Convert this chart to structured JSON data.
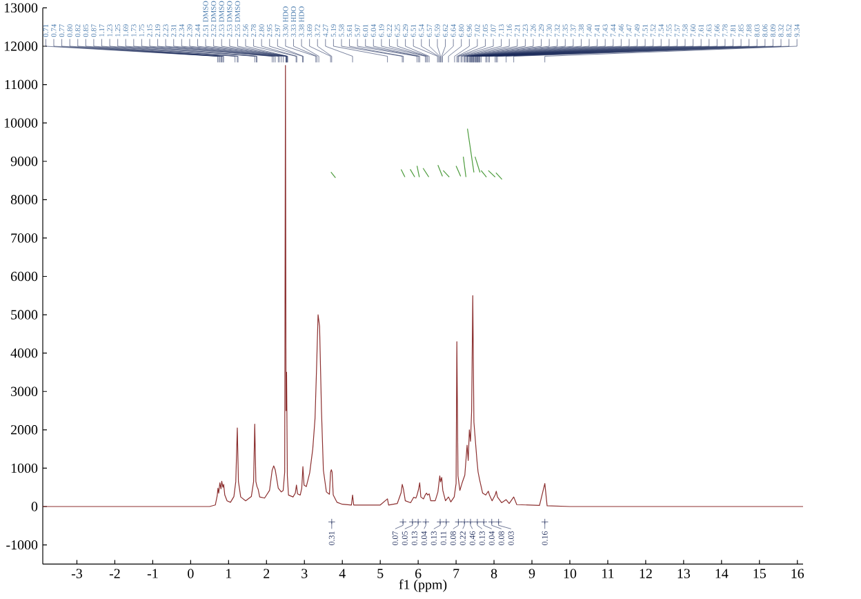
{
  "chart_data": {
    "type": "line",
    "xlabel": "f1 (ppm)",
    "xlim": [
      -3.9,
      16.15
    ],
    "ylim": [
      -1500,
      13000
    ],
    "xticks": [
      -3,
      -2,
      -1,
      0,
      1,
      2,
      3,
      4,
      5,
      6,
      7,
      8,
      9,
      10,
      11,
      12,
      13,
      14,
      15,
      16
    ],
    "yticks": [
      -1000,
      0,
      1000,
      2000,
      3000,
      4000,
      5000,
      6000,
      7000,
      8000,
      9000,
      10000,
      11000,
      12000,
      13000
    ],
    "series": [
      {
        "color": "#8b2e2e",
        "x": [
          -3.9,
          0.5,
          0.65,
          0.7,
          0.72,
          0.74,
          0.77,
          0.8,
          0.82,
          0.85,
          0.87,
          0.9,
          0.96,
          1.05,
          1.14,
          1.19,
          1.23,
          1.26,
          1.32,
          1.45,
          1.6,
          1.66,
          1.69,
          1.72,
          1.75,
          1.78,
          1.82,
          1.95,
          2.08,
          2.15,
          2.19,
          2.23,
          2.31,
          2.39,
          2.44,
          2.48,
          2.5,
          2.515,
          2.53,
          2.55,
          2.58,
          2.7,
          2.76,
          2.79,
          2.82,
          2.89,
          2.93,
          2.96,
          2.99,
          3.05,
          3.14,
          3.22,
          3.28,
          3.32,
          3.36,
          3.4,
          3.45,
          3.5,
          3.58,
          3.66,
          3.69,
          3.71,
          3.73,
          3.76,
          3.86,
          4.0,
          4.24,
          4.27,
          4.3,
          5.0,
          5.19,
          5.22,
          5.45,
          5.55,
          5.58,
          5.61,
          5.66,
          5.8,
          5.88,
          5.94,
          5.97,
          6.01,
          6.04,
          6.07,
          6.14,
          6.19,
          6.22,
          6.25,
          6.29,
          6.33,
          6.45,
          6.52,
          6.57,
          6.59,
          6.62,
          6.65,
          6.72,
          6.8,
          6.86,
          6.95,
          7.0,
          7.02,
          7.05,
          7.1,
          7.16,
          7.23,
          7.29,
          7.32,
          7.35,
          7.38,
          7.41,
          7.44,
          7.47,
          7.51,
          7.55,
          7.58,
          7.62,
          7.7,
          7.78,
          7.85,
          7.88,
          7.95,
          8.03,
          8.06,
          8.09,
          8.2,
          8.32,
          8.4,
          8.52,
          8.6,
          9.2,
          9.34,
          9.4,
          10.0,
          16.15
        ],
        "values": [
          0,
          0,
          40,
          280,
          480,
          350,
          620,
          460,
          660,
          500,
          580,
          300,
          150,
          110,
          260,
          650,
          2050,
          650,
          250,
          150,
          260,
          650,
          2150,
          650,
          520,
          450,
          250,
          220,
          420,
          950,
          1060,
          960,
          480,
          380,
          420,
          900,
          11500,
          2500,
          3500,
          800,
          300,
          250,
          350,
          560,
          330,
          300,
          480,
          1040,
          560,
          520,
          880,
          1500,
          2300,
          3600,
          5000,
          4700,
          2500,
          950,
          380,
          320,
          900,
          960,
          900,
          300,
          110,
          60,
          40,
          300,
          40,
          40,
          200,
          40,
          80,
          360,
          580,
          460,
          150,
          100,
          240,
          220,
          300,
          450,
          620,
          250,
          200,
          310,
          350,
          300,
          330,
          150,
          150,
          380,
          800,
          640,
          760,
          420,
          150,
          250,
          120,
          250,
          600,
          4300,
          800,
          420,
          620,
          820,
          1600,
          1200,
          2000,
          1700,
          2500,
          5500,
          2200,
          1700,
          1200,
          900,
          700,
          350,
          300,
          400,
          300,
          150,
          300,
          400,
          250,
          100,
          180,
          80,
          250,
          50,
          30,
          600,
          20,
          0,
          0
        ]
      },
      {
        "color": "#4a9a3a",
        "x": [
          3.7,
          3.82
        ],
        "values": [
          8720,
          8570
        ]
      },
      {
        "color": "#4a9a3a",
        "x": [
          5.55,
          5.65
        ],
        "values": [
          8790,
          8590
        ]
      },
      {
        "color": "#4a9a3a",
        "x": [
          5.79,
          5.91
        ],
        "values": [
          8790,
          8590
        ]
      },
      {
        "color": "#4a9a3a",
        "x": [
          5.97,
          6.03
        ],
        "values": [
          8880,
          8590
        ]
      },
      {
        "color": "#4a9a3a",
        "x": [
          6.13,
          6.28
        ],
        "values": [
          8820,
          8590
        ]
      },
      {
        "color": "#4a9a3a",
        "x": [
          6.52,
          6.64
        ],
        "values": [
          8900,
          8610
        ]
      },
      {
        "color": "#4a9a3a",
        "x": [
          6.66,
          6.82
        ],
        "values": [
          8760,
          8590
        ]
      },
      {
        "color": "#4a9a3a",
        "x": [
          7.0,
          7.12
        ],
        "values": [
          8880,
          8610
        ]
      },
      {
        "color": "#4a9a3a",
        "x": [
          7.19,
          7.26
        ],
        "values": [
          9120,
          8590
        ]
      },
      {
        "color": "#4a9a3a",
        "x": [
          7.3,
          7.47
        ],
        "values": [
          9850,
          8710
        ]
      },
      {
        "color": "#4a9a3a",
        "x": [
          7.5,
          7.63
        ],
        "values": [
          9120,
          8710
        ]
      },
      {
        "color": "#4a9a3a",
        "x": [
          7.66,
          7.8
        ],
        "values": [
          8760,
          8590
        ]
      },
      {
        "color": "#4a9a3a",
        "x": [
          7.85,
          8.03
        ],
        "values": [
          8760,
          8590
        ]
      },
      {
        "color": "#4a9a3a",
        "x": [
          8.05,
          8.21
        ],
        "values": [
          8700,
          8530
        ]
      },
      {
        "type": "scatter",
        "color": "#2d3a66",
        "x": [
          3.72,
          5.6,
          5.85,
          6.0,
          6.2,
          6.58,
          6.74,
          7.06,
          7.22,
          7.38,
          7.56,
          7.73,
          7.94,
          8.12,
          9.34
        ],
        "values": [
          -400,
          -400,
          -400,
          -400,
          -400,
          -400,
          -400,
          -400,
          -400,
          -400,
          -400,
          -400,
          -400,
          -400,
          -400
        ]
      }
    ],
    "annotations": [
      {
        "text": "0.71",
        "x": 0.71
      },
      {
        "text": "0.74",
        "x": 0.74
      },
      {
        "text": "0.77",
        "x": 0.77
      },
      {
        "text": "0.80",
        "x": 0.8
      },
      {
        "text": "0.82",
        "x": 0.82
      },
      {
        "text": "0.85",
        "x": 0.85
      },
      {
        "text": "0.87",
        "x": 0.87
      },
      {
        "text": "1.17",
        "x": 1.17
      },
      {
        "text": "1.23",
        "x": 1.23
      },
      {
        "text": "1.25",
        "x": 1.25
      },
      {
        "text": "1.69",
        "x": 1.69
      },
      {
        "text": "1.73",
        "x": 1.73
      },
      {
        "text": "1.75",
        "x": 1.75
      },
      {
        "text": "2.15",
        "x": 2.15
      },
      {
        "text": "2.19",
        "x": 2.19
      },
      {
        "text": "2.23",
        "x": 2.23
      },
      {
        "text": "2.31",
        "x": 2.31
      },
      {
        "text": "2.34",
        "x": 2.34
      },
      {
        "text": "2.39",
        "x": 2.39
      },
      {
        "text": "2.44",
        "x": 2.44
      },
      {
        "text": "2.51 DMSO",
        "x": 2.51
      },
      {
        "text": "2.52 DMSO",
        "x": 2.52
      },
      {
        "text": "2.53 DMSO",
        "x": 2.53
      },
      {
        "text": "2.53 DMSO",
        "x": 2.53
      },
      {
        "text": "2.55 DMSO",
        "x": 2.55
      },
      {
        "text": "2.56",
        "x": 2.56
      },
      {
        "text": "2.78",
        "x": 2.78
      },
      {
        "text": "2.80",
        "x": 2.8
      },
      {
        "text": "2.95",
        "x": 2.95
      },
      {
        "text": "2.97",
        "x": 2.97
      },
      {
        "text": "3.30 HDO",
        "x": 3.3
      },
      {
        "text": "3.33 HDO",
        "x": 3.33
      },
      {
        "text": "3.38 HDO",
        "x": 3.38
      },
      {
        "text": "3.69",
        "x": 3.69
      },
      {
        "text": "3.72",
        "x": 3.72
      },
      {
        "text": "4.27",
        "x": 4.27
      },
      {
        "text": "5.19",
        "x": 5.19
      },
      {
        "text": "5.58",
        "x": 5.58
      },
      {
        "text": "5.61",
        "x": 5.61
      },
      {
        "text": "5.97",
        "x": 5.97
      },
      {
        "text": "6.01",
        "x": 6.01
      },
      {
        "text": "6.04",
        "x": 6.04
      },
      {
        "text": "6.19",
        "x": 6.19
      },
      {
        "text": "6.22",
        "x": 6.22
      },
      {
        "text": "6.25",
        "x": 6.25
      },
      {
        "text": "6.29",
        "x": 6.29
      },
      {
        "text": "6.51",
        "x": 6.51
      },
      {
        "text": "6.54",
        "x": 6.54
      },
      {
        "text": "6.57",
        "x": 6.57
      },
      {
        "text": "6.59",
        "x": 6.59
      },
      {
        "text": "6.62",
        "x": 6.62
      },
      {
        "text": "6.64",
        "x": 6.64
      },
      {
        "text": "6.80",
        "x": 6.8
      },
      {
        "text": "6.96",
        "x": 6.96
      },
      {
        "text": "7.02",
        "x": 7.02
      },
      {
        "text": "7.05",
        "x": 7.05
      },
      {
        "text": "7.07",
        "x": 7.07
      },
      {
        "text": "7.13",
        "x": 7.13
      },
      {
        "text": "7.16",
        "x": 7.16
      },
      {
        "text": "7.21",
        "x": 7.21
      },
      {
        "text": "7.23",
        "x": 7.23
      },
      {
        "text": "7.26",
        "x": 7.26
      },
      {
        "text": "7.29",
        "x": 7.29
      },
      {
        "text": "7.30",
        "x": 7.3
      },
      {
        "text": "7.32",
        "x": 7.32
      },
      {
        "text": "7.35",
        "x": 7.35
      },
      {
        "text": "7.37",
        "x": 7.37
      },
      {
        "text": "7.38",
        "x": 7.38
      },
      {
        "text": "7.40",
        "x": 7.4
      },
      {
        "text": "7.41",
        "x": 7.41
      },
      {
        "text": "7.43",
        "x": 7.43
      },
      {
        "text": "7.44",
        "x": 7.44
      },
      {
        "text": "7.46",
        "x": 7.46
      },
      {
        "text": "7.47",
        "x": 7.47
      },
      {
        "text": "7.49",
        "x": 7.49
      },
      {
        "text": "7.51",
        "x": 7.51
      },
      {
        "text": "7.52",
        "x": 7.52
      },
      {
        "text": "7.54",
        "x": 7.54
      },
      {
        "text": "7.55",
        "x": 7.55
      },
      {
        "text": "7.57",
        "x": 7.57
      },
      {
        "text": "7.58",
        "x": 7.58
      },
      {
        "text": "7.60",
        "x": 7.6
      },
      {
        "text": "7.61",
        "x": 7.61
      },
      {
        "text": "7.63",
        "x": 7.63
      },
      {
        "text": "7.66",
        "x": 7.66
      },
      {
        "text": "7.78",
        "x": 7.78
      },
      {
        "text": "7.81",
        "x": 7.81
      },
      {
        "text": "7.85",
        "x": 7.85
      },
      {
        "text": "7.88",
        "x": 7.88
      },
      {
        "text": "8.03",
        "x": 8.03
      },
      {
        "text": "8.06",
        "x": 8.06
      },
      {
        "text": "8.09",
        "x": 8.09
      },
      {
        "text": "8.32",
        "x": 8.32
      },
      {
        "text": "8.52",
        "x": 8.52
      },
      {
        "text": "9.34",
        "x": 9.34
      },
      "0.31",
      "0.07",
      "0.05",
      "0.13",
      "0.04",
      "0.13",
      "0.11",
      "0.08",
      "0.22",
      "0.46",
      "0.13",
      "0.04",
      "0.08",
      "0.03",
      "0.16"
    ]
  }
}
